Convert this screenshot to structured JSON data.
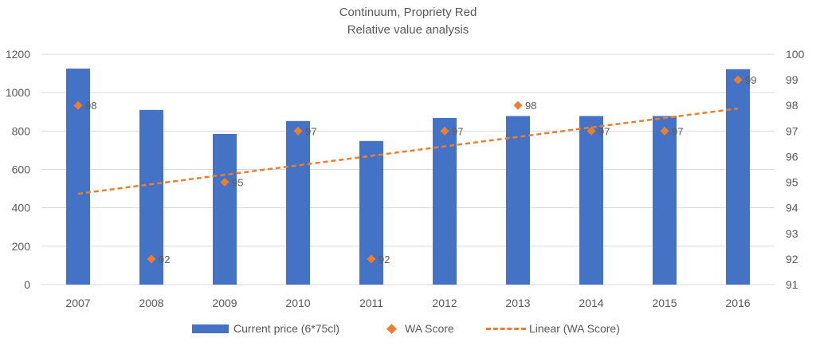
{
  "chart_data": {
    "type": "bar",
    "title": "Continuum, Propriety Red",
    "subtitle": "Relative value analysis",
    "categories": [
      "2007",
      "2008",
      "2009",
      "2010",
      "2011",
      "2012",
      "2013",
      "2014",
      "2015",
      "2016"
    ],
    "series": [
      {
        "name": "Current price (6*75cl)",
        "type": "bar",
        "axis": "left",
        "color": "#4472c4",
        "values": [
          1125,
          910,
          785,
          852,
          748,
          868,
          878,
          878,
          878,
          1122
        ]
      },
      {
        "name": "WA Score",
        "type": "scatter",
        "axis": "right",
        "color": "#ed7d31",
        "marker": "diamond",
        "values": [
          98,
          92,
          95,
          97,
          92,
          97,
          98,
          97,
          97,
          99
        ],
        "data_labels": [
          "98",
          "92",
          "95",
          "97",
          "92",
          "97",
          "98",
          "97",
          "97",
          "99"
        ]
      },
      {
        "name": "Linear (WA Score)",
        "type": "line",
        "axis": "right",
        "color": "#ed7d31",
        "dashed": true,
        "values": [
          94.55,
          94.92,
          95.29,
          95.66,
          96.03,
          96.4,
          96.77,
          97.14,
          97.51,
          97.88
        ]
      }
    ],
    "y_left": {
      "min": 0,
      "max": 1200,
      "ticks": [
        "0",
        "200",
        "400",
        "600",
        "800",
        "1000",
        "1200"
      ]
    },
    "y_right": {
      "min": 91,
      "max": 100,
      "ticks": [
        "91",
        "92",
        "93",
        "94",
        "95",
        "96",
        "97",
        "98",
        "99",
        "100"
      ]
    },
    "grid": true,
    "legend_position": "bottom"
  }
}
